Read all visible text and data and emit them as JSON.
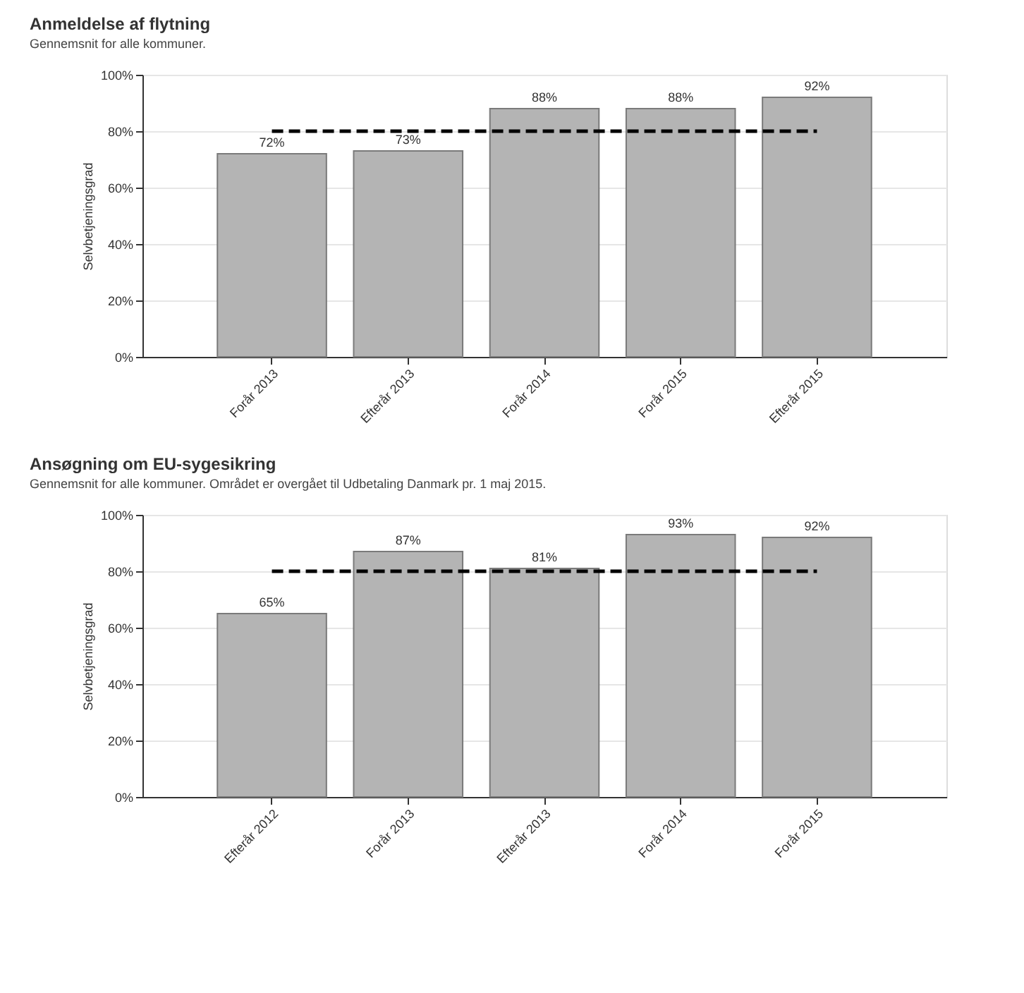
{
  "chart_data": [
    {
      "type": "bar",
      "title": "Anmeldelse af flytning",
      "subtitle": "Gennemsnit for alle kommuner.",
      "ylabel": "Selvbetjeningsgrad",
      "categories": [
        "Forår 2013",
        "Efterår 2013",
        "Forår 2014",
        "Forår 2015",
        "Efterår 2015"
      ],
      "values": [
        72,
        73,
        88,
        88,
        92
      ],
      "color": "#b4b4b4",
      "value_labels": [
        "72%",
        "73%",
        "88%",
        "88%",
        "92%"
      ],
      "ylim": [
        0,
        100
      ],
      "yticks": [
        {
          "value": 0,
          "label": "0%"
        },
        {
          "value": 20,
          "label": "20%"
        },
        {
          "value": 40,
          "label": "40%"
        },
        {
          "value": 60,
          "label": "60%"
        },
        {
          "value": 80,
          "label": "80%"
        },
        {
          "value": 100,
          "label": "100%"
        }
      ],
      "ref_lines": [
        {
          "axis": "y",
          "value": 80,
          "color": "#000000",
          "line_style": "dashed"
        }
      ],
      "grid": "y"
    },
    {
      "type": "bar",
      "title": "Ansøgning om EU-sygesikring",
      "subtitle": "Gennemsnit for alle kommuner. Området er overgået til Udbetaling Danmark pr. 1 maj 2015.",
      "ylabel": "Selvbetjeningsgrad",
      "categories": [
        "Efterår 2012",
        "Forår 2013",
        "Efterår 2013",
        "Forår 2014",
        "Forår 2015"
      ],
      "values": [
        65,
        87,
        81,
        93,
        92
      ],
      "color": "#b4b4b4",
      "value_labels": [
        "65%",
        "87%",
        "81%",
        "93%",
        "92%"
      ],
      "ylim": [
        0,
        100
      ],
      "yticks": [
        {
          "value": 0,
          "label": "0%"
        },
        {
          "value": 20,
          "label": "20%"
        },
        {
          "value": 40,
          "label": "40%"
        },
        {
          "value": 60,
          "label": "60%"
        },
        {
          "value": 80,
          "label": "80%"
        },
        {
          "value": 100,
          "label": "100%"
        }
      ],
      "ref_lines": [
        {
          "axis": "y",
          "value": 80,
          "color": "#000000",
          "line_style": "dashed"
        }
      ],
      "grid": "y"
    }
  ]
}
